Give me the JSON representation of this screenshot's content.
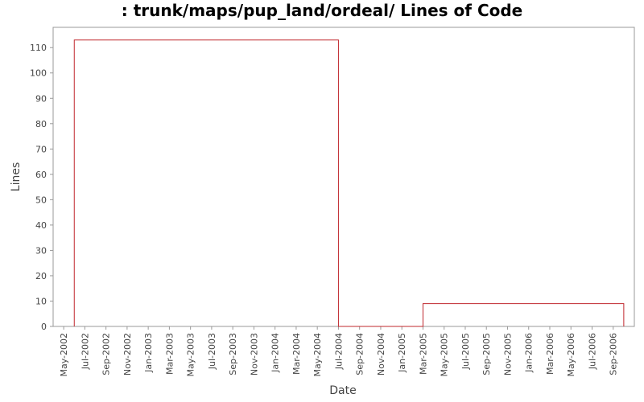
{
  "chart_data": {
    "type": "line",
    "title": ": trunk/maps/pup_land/ordeal/ Lines of Code",
    "x_label": "Date",
    "y_label": "Lines",
    "x": [
      "2002-06",
      "2002-06",
      "2004-07",
      "2004-07",
      "2005-03",
      "2005-03",
      "2006-10",
      "2006-10"
    ],
    "series": [
      {
        "name": "Lines",
        "color": "#c0282e",
        "values": [
          0,
          113,
          113,
          0,
          0,
          9,
          9,
          0
        ]
      }
    ],
    "xlim": [
      "2002-04",
      "2006-11"
    ],
    "xticks": [
      {
        "value": "2002-05",
        "label": "May-2002"
      },
      {
        "value": "2002-07",
        "label": "Jul-2002"
      },
      {
        "value": "2002-09",
        "label": "Sep-2002"
      },
      {
        "value": "2002-11",
        "label": "Nov-2002"
      },
      {
        "value": "2003-01",
        "label": "Jan-2003"
      },
      {
        "value": "2003-03",
        "label": "Mar-2003"
      },
      {
        "value": "2003-05",
        "label": "May-2003"
      },
      {
        "value": "2003-07",
        "label": "Jul-2003"
      },
      {
        "value": "2003-09",
        "label": "Sep-2003"
      },
      {
        "value": "2003-11",
        "label": "Nov-2003"
      },
      {
        "value": "2004-01",
        "label": "Jan-2004"
      },
      {
        "value": "2004-03",
        "label": "Mar-2004"
      },
      {
        "value": "2004-05",
        "label": "May-2004"
      },
      {
        "value": "2004-07",
        "label": "Jul-2004"
      },
      {
        "value": "2004-09",
        "label": "Sep-2004"
      },
      {
        "value": "2004-11",
        "label": "Nov-2004"
      },
      {
        "value": "2005-01",
        "label": "Jan-2005"
      },
      {
        "value": "2005-03",
        "label": "Mar-2005"
      },
      {
        "value": "2005-05",
        "label": "May-2005"
      },
      {
        "value": "2005-07",
        "label": "Jul-2005"
      },
      {
        "value": "2005-09",
        "label": "Sep-2005"
      },
      {
        "value": "2005-11",
        "label": "Nov-2005"
      },
      {
        "value": "2006-01",
        "label": "Jan-2006"
      },
      {
        "value": "2006-03",
        "label": "Mar-2006"
      },
      {
        "value": "2006-05",
        "label": "May-2006"
      },
      {
        "value": "2006-07",
        "label": "Jul-2006"
      },
      {
        "value": "2006-09",
        "label": "Sep-2006"
      }
    ],
    "ylim": [
      0,
      118
    ],
    "yticks": [
      0,
      10,
      20,
      30,
      40,
      50,
      60,
      70,
      80,
      90,
      100,
      110
    ],
    "grid": false
  }
}
